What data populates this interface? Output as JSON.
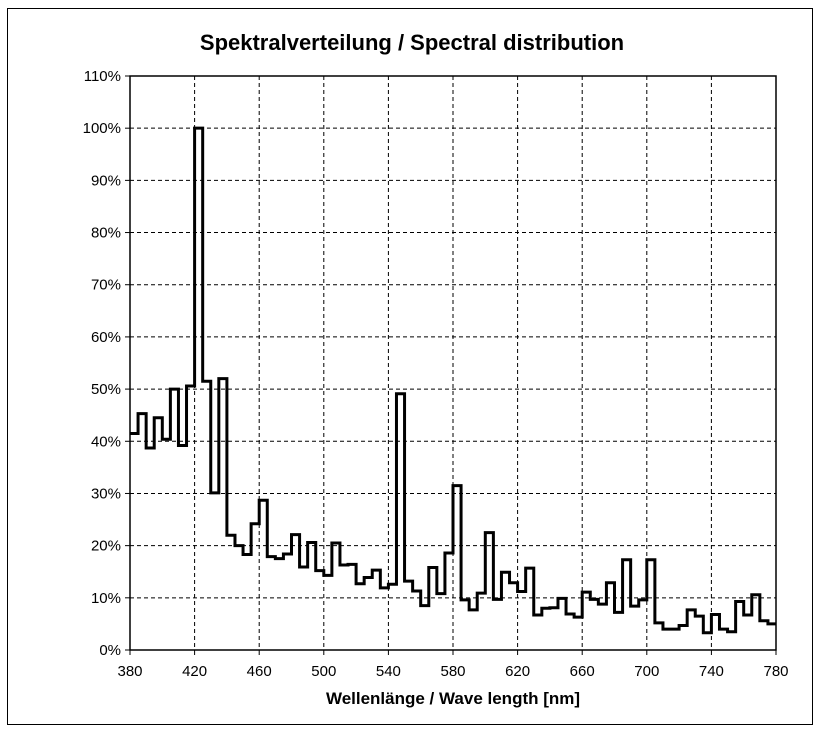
{
  "chart_data": {
    "type": "line",
    "step": true,
    "title": "Spektralverteilung / Spectral distribution",
    "xlabel": "Wellenlänge / Wave length [nm]",
    "ylabel": "",
    "xlim": [
      380,
      780
    ],
    "ylim": [
      0,
      110
    ],
    "x_ticks": [
      380,
      420,
      460,
      500,
      540,
      580,
      620,
      660,
      700,
      740,
      780
    ],
    "y_ticks": [
      0,
      10,
      20,
      30,
      40,
      50,
      60,
      70,
      80,
      90,
      100,
      110
    ],
    "y_tick_labels": [
      "0%",
      "10%",
      "20%",
      "30%",
      "40%",
      "50%",
      "60%",
      "70%",
      "80%",
      "90%",
      "100%",
      "110%"
    ],
    "grid": true,
    "line_color": "#000000",
    "series": [
      {
        "x": [
          380,
          385,
          390,
          395,
          400,
          405,
          410,
          415,
          420,
          425,
          430,
          435,
          440,
          445,
          450,
          455,
          460,
          465,
          470,
          475,
          480,
          485,
          490,
          495,
          500,
          505,
          510,
          515,
          520,
          525,
          530,
          535,
          540,
          545,
          550,
          555,
          560,
          565,
          570,
          575,
          580,
          585,
          590,
          595,
          600,
          605,
          610,
          615,
          620,
          625,
          630,
          635,
          640,
          645,
          650,
          655,
          660,
          665,
          670,
          675,
          680,
          685,
          690,
          695,
          700,
          705,
          710,
          715,
          720,
          725,
          730,
          735,
          740,
          745,
          750,
          755,
          760,
          765,
          770,
          775
        ],
        "values": [
          41.5,
          45.3,
          38.7,
          44.5,
          40.4,
          50.0,
          39.2,
          50.6,
          100.0,
          51.5,
          30.1,
          52.0,
          22.0,
          20.0,
          18.3,
          24.2,
          28.7,
          17.9,
          17.5,
          18.4,
          22.1,
          15.9,
          20.6,
          15.2,
          14.3,
          20.5,
          16.3,
          16.4,
          12.7,
          13.9,
          15.3,
          11.9,
          12.6,
          49.1,
          13.2,
          11.3,
          8.5,
          15.8,
          10.8,
          18.6,
          31.5,
          9.6,
          7.7,
          10.9,
          22.5,
          9.7,
          14.9,
          12.9,
          11.2,
          15.7,
          6.7,
          8.0,
          8.1,
          9.9,
          6.9,
          6.3,
          11.1,
          9.7,
          8.8,
          12.9,
          7.2,
          17.3,
          8.4,
          9.6,
          17.3,
          5.2,
          4.0,
          4.0,
          4.7,
          7.7,
          6.5,
          3.3,
          6.8,
          4.0,
          3.5,
          9.3,
          6.7,
          10.6,
          5.6,
          5.0
        ]
      }
    ]
  }
}
